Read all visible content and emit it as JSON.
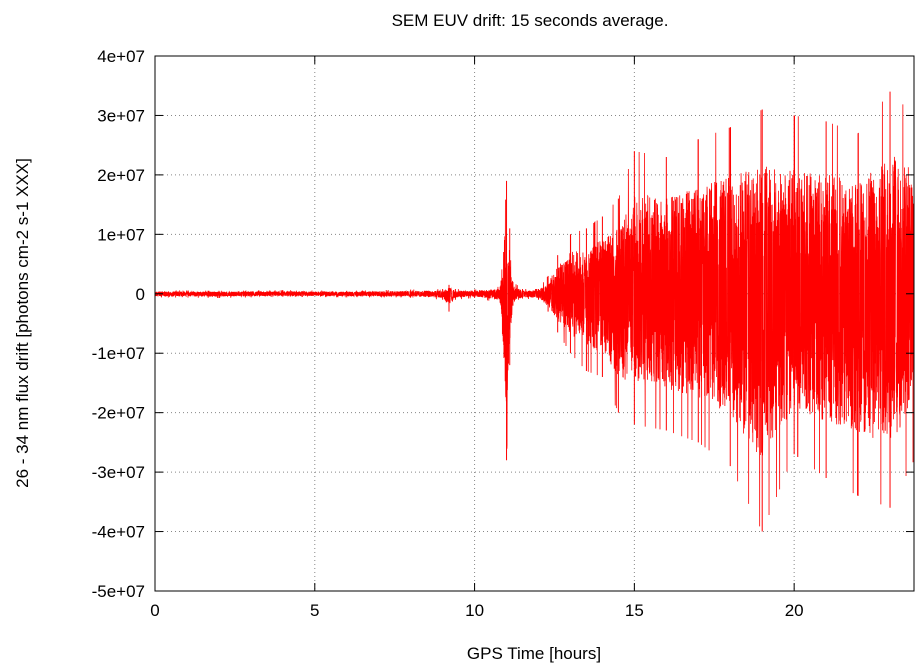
{
  "chart_data": {
    "type": "line",
    "title": "SEM EUV drift: 15 seconds average.",
    "xlabel": "GPS Time [hours]",
    "ylabel": "26 - 34 nm flux drift [photons cm-2 s-1 XXX]",
    "xlim": [
      0,
      23.75
    ],
    "ylim": [
      -50000000,
      40000000
    ],
    "x_ticks": [
      0,
      5,
      10,
      15,
      20
    ],
    "x_tick_labels": [
      "0",
      "5",
      "10",
      "15",
      "20"
    ],
    "y_ticks": [
      40000000,
      30000000,
      20000000,
      10000000,
      0,
      -10000000,
      -20000000,
      -30000000,
      -40000000,
      -50000000
    ],
    "y_tick_labels": [
      "4e+07",
      "3e+07",
      "2e+07",
      "1e+07",
      "0",
      "-1e+07",
      "-2e+07",
      "-3e+07",
      "-4e+07",
      "-5e+07"
    ],
    "grid": true,
    "series": [
      {
        "color": "#ff0000",
        "sampling_interval_seconds": 15,
        "envelope": {
          "x": [
            0,
            2,
            4,
            6,
            8,
            9,
            9.2,
            9.4,
            10,
            10.8,
            11.0,
            11.1,
            11.2,
            11.5,
            12.0,
            12.3,
            12.6,
            13.0,
            13.5,
            14.0,
            14.5,
            15.0,
            16.0,
            17.0,
            18.0,
            19.0,
            20.0,
            21.0,
            22.0,
            23.0,
            23.75
          ],
          "upper": [
            600000,
            500000,
            600000,
            500000,
            700000,
            800000,
            1500000,
            800000,
            700000,
            1200000,
            19000000,
            11000000,
            2000000,
            800000,
            800000,
            3000000,
            6500000,
            10000000,
            11000000,
            13000000,
            16000000,
            24000000,
            23000000,
            26000000,
            28000000,
            31000000,
            30000000,
            29000000,
            27000000,
            34000000,
            30000000
          ],
          "lower": [
            -600000,
            -700000,
            -500000,
            -600000,
            -600000,
            -1000000,
            -3000000,
            -1000000,
            -700000,
            -1500000,
            -28000000,
            -12000000,
            -2000000,
            -800000,
            -1000000,
            -3000000,
            -6500000,
            -10000000,
            -13000000,
            -14000000,
            -20000000,
            -22000000,
            -23000000,
            -25000000,
            -29000000,
            -40000000,
            -27000000,
            -31000000,
            -34000000,
            -36000000,
            -28000000
          ]
        }
      }
    ]
  }
}
